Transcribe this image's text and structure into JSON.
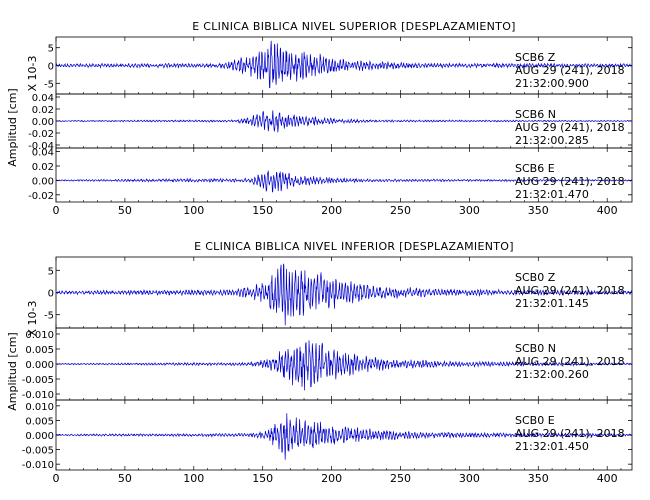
{
  "panels": [
    {
      "title": "E CLINICA BIBLICA NIVEL SUPERIOR [DESPLAZAMIENTO]",
      "ylabel": "Amplitud [cm]",
      "scale_label": "X 10-3",
      "xticks": [
        "0",
        "50",
        "100",
        "150",
        "200",
        "250",
        "300",
        "350",
        "400"
      ],
      "traces": [
        {
          "station": "SCB6",
          "component": "Z",
          "date": "AUG 29 (241), 2018",
          "time": "21:32:00.900",
          "yticks": [
            "5",
            "0",
            "-5"
          ]
        },
        {
          "station": "SCB6",
          "component": "N",
          "date": "AUG 29 (241), 2018",
          "time": "21:32:00.285",
          "yticks": [
            "0.04",
            "0.02",
            "0.00",
            "-0.02",
            "-0.04"
          ]
        },
        {
          "station": "SCB6",
          "component": "E",
          "date": "AUG 29 (241), 2018",
          "time": "21:32:01.470",
          "yticks": [
            "0.04",
            "0.02",
            "0.00",
            "-0.02"
          ]
        }
      ]
    },
    {
      "title": "E CLINICA BIBLICA NIVEL INFERIOR [DESPLAZAMIENTO]",
      "ylabel": "Amplitud [cm]",
      "scale_label": "X 10-3",
      "xticks": [
        "0",
        "50",
        "100",
        "150",
        "200",
        "250",
        "300",
        "350",
        "400"
      ],
      "traces": [
        {
          "station": "SCB0",
          "component": "Z",
          "date": "AUG 29 (241), 2018",
          "time": "21:32:01.145",
          "yticks": [
            "5",
            "0",
            "-5"
          ]
        },
        {
          "station": "SCB0",
          "component": "N",
          "date": "AUG 29 (241), 2018",
          "time": "21:32:00.260",
          "yticks": [
            "0.010",
            "0.005",
            "0.000",
            "-0.005",
            "-0.010"
          ]
        },
        {
          "station": "SCB0",
          "component": "E",
          "date": "AUG 29 (241), 2018",
          "time": "21:32:01.450",
          "yticks": [
            "0.010",
            "0.005",
            "0.000",
            "-0.005",
            "-0.010"
          ]
        }
      ]
    }
  ],
  "chart_data": [
    {
      "type": "line",
      "title": "E CLINICA BIBLICA NIVEL SUPERIOR [DESPLAZAMIENTO]",
      "xlabel": "",
      "ylabel": "Amplitud [cm]",
      "xlim": [
        0,
        418
      ],
      "color": "#0000cc",
      "grid": false,
      "series": [
        {
          "name": "SCB6 Z",
          "ylim": [
            -8,
            8
          ],
          "scale": "X 10-3",
          "envelope": {
            "t": [
              0,
              120,
              140,
              150,
              155,
              160,
              170,
              180,
              200,
              230,
              270,
              418
            ],
            "amp": [
              0.5,
              0.7,
              3,
              6,
              8,
              7,
              6,
              4.5,
              2.5,
              1.2,
              0.7,
              0.5
            ]
          }
        },
        {
          "name": "SCB6 N",
          "ylim": [
            -0.045,
            0.045
          ],
          "envelope": {
            "t": [
              0,
              130,
              140,
              150,
              160,
              170,
              180,
              200,
              230,
              418
            ],
            "amp": [
              0.001,
              0.002,
              0.008,
              0.018,
              0.02,
              0.015,
              0.01,
              0.005,
              0.002,
              0.001
            ]
          }
        },
        {
          "name": "SCB6 E",
          "ylim": [
            -0.03,
            0.045
          ],
          "envelope": {
            "t": [
              0,
              140,
              150,
              155,
              160,
              170,
              180,
              200,
              230,
              418
            ],
            "amp": [
              0.001,
              0.003,
              0.012,
              0.02,
              0.018,
              0.012,
              0.008,
              0.004,
              0.002,
              0.001
            ]
          }
        }
      ]
    },
    {
      "type": "line",
      "title": "E CLINICA BIBLICA NIVEL INFERIOR [DESPLAZAMIENTO]",
      "xlabel": "",
      "ylabel": "Amplitud [cm]",
      "xlim": [
        0,
        418
      ],
      "color": "#0000cc",
      "grid": false,
      "series": [
        {
          "name": "SCB0 Z",
          "ylim": [
            -8,
            8
          ],
          "scale": "X 10-3",
          "envelope": {
            "t": [
              0,
              130,
              150,
              165,
              175,
              190,
              210,
              240,
              280,
              418
            ],
            "amp": [
              0.4,
              0.7,
              2.5,
              8,
              6,
              5,
              3,
              1.5,
              0.8,
              0.4
            ]
          }
        },
        {
          "name": "SCB0 N",
          "ylim": [
            -0.012,
            0.012
          ],
          "envelope": {
            "t": [
              0,
              140,
              155,
              170,
              180,
              190,
              210,
              240,
              280,
              418
            ],
            "amp": [
              0.0002,
              0.0006,
              0.002,
              0.007,
              0.01,
              0.008,
              0.004,
              0.002,
              0.001,
              0.0003
            ]
          }
        },
        {
          "name": "SCB0 E",
          "ylim": [
            -0.012,
            0.012
          ],
          "envelope": {
            "t": [
              0,
              140,
              155,
              165,
              175,
              190,
              210,
              240,
              280,
              418
            ],
            "amp": [
              0.0003,
              0.0006,
              0.002,
              0.009,
              0.006,
              0.005,
              0.003,
              0.002,
              0.001,
              0.0004
            ]
          }
        }
      ]
    }
  ]
}
